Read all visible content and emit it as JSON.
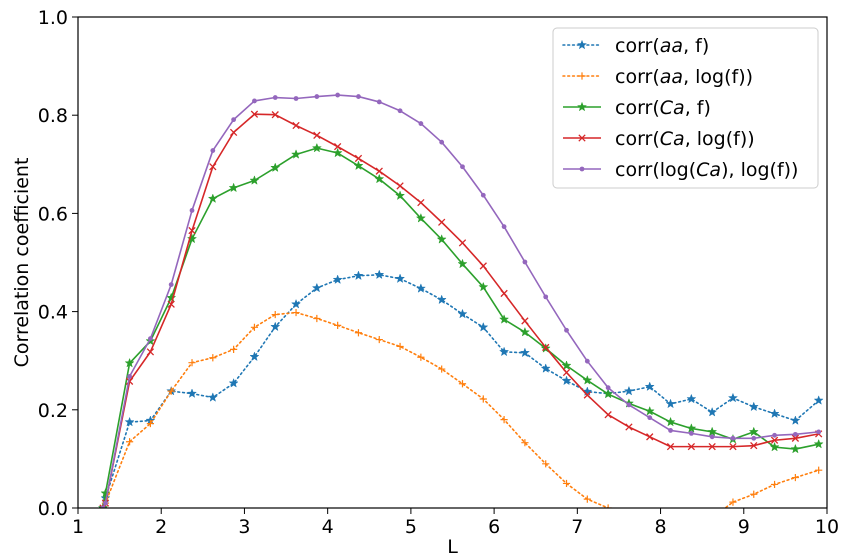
{
  "chart_data": {
    "type": "line",
    "xlabel": "L",
    "ylabel": "Correlation coefficient",
    "xlim": [
      1,
      10
    ],
    "ylim": [
      0,
      1.0
    ],
    "x_ticks": [
      "1",
      "2",
      "3",
      "4",
      "5",
      "6",
      "7",
      "8",
      "9",
      "10"
    ],
    "y_ticks": [
      "0.0",
      "0.2",
      "0.4",
      "0.6",
      "0.8",
      "1.0"
    ],
    "legend_position": "top-right",
    "x": [
      1.3,
      1.33,
      1.62,
      1.87,
      2.12,
      2.37,
      2.62,
      2.87,
      3.12,
      3.37,
      3.62,
      3.87,
      4.12,
      4.37,
      4.62,
      4.87,
      5.12,
      5.37,
      5.62,
      5.87,
      6.12,
      6.37,
      6.62,
      6.87,
      7.12,
      7.37,
      7.62,
      7.87,
      8.12,
      8.37,
      8.62,
      8.87,
      9.12,
      9.37,
      9.62,
      9.9
    ],
    "series": [
      {
        "name": "corr(aa, f)",
        "name_parts": [
          {
            "t": "corr(",
            "i": false
          },
          {
            "t": "aa",
            "i": true
          },
          {
            "t": ", f)",
            "i": false
          }
        ],
        "color": "#1f77b4",
        "linestyle": "dotted",
        "marker": "star",
        "values": [
          0.0,
          0.02,
          0.175,
          0.178,
          0.238,
          0.233,
          0.225,
          0.254,
          0.308,
          0.369,
          0.415,
          0.448,
          0.465,
          0.473,
          0.475,
          0.467,
          0.447,
          0.424,
          0.395,
          0.368,
          0.318,
          0.316,
          0.284,
          0.259,
          0.237,
          0.233,
          0.238,
          0.247,
          0.212,
          0.222,
          0.195,
          0.224,
          0.206,
          0.192,
          0.178,
          0.219
        ]
      },
      {
        "name": "corr(aa, log(f))",
        "name_parts": [
          {
            "t": "corr(",
            "i": false
          },
          {
            "t": "aa",
            "i": true
          },
          {
            "t": ", log(f))",
            "i": false
          }
        ],
        "color": "#ff7f0e",
        "linestyle": "dotted",
        "marker": "plus",
        "values": [
          0.0,
          0.01,
          0.135,
          0.172,
          0.238,
          0.296,
          0.306,
          0.323,
          0.368,
          0.394,
          0.398,
          0.386,
          0.372,
          0.357,
          0.343,
          0.329,
          0.307,
          0.283,
          0.253,
          0.222,
          0.18,
          0.133,
          0.09,
          0.05,
          0.018,
          0.0,
          -0.02,
          -0.04,
          -0.05,
          -0.04,
          -0.02,
          0.012,
          0.028,
          0.048,
          0.062,
          0.077
        ]
      },
      {
        "name": "corr(Ca, f)",
        "name_parts": [
          {
            "t": "corr(",
            "i": false
          },
          {
            "t": "Ca",
            "i": true
          },
          {
            "t": ", f)",
            "i": false
          }
        ],
        "color": "#2ca02c",
        "linestyle": "solid",
        "marker": "star",
        "values": [
          0.0,
          0.03,
          0.295,
          0.34,
          0.428,
          0.548,
          0.63,
          0.652,
          0.667,
          0.693,
          0.72,
          0.733,
          0.723,
          0.697,
          0.67,
          0.636,
          0.59,
          0.547,
          0.497,
          0.45,
          0.384,
          0.358,
          0.325,
          0.29,
          0.26,
          0.232,
          0.213,
          0.197,
          0.175,
          0.162,
          0.155,
          0.14,
          0.155,
          0.124,
          0.12,
          0.13
        ]
      },
      {
        "name": "corr(Ca, log(f))",
        "name_parts": [
          {
            "t": "corr(",
            "i": false
          },
          {
            "t": "Ca",
            "i": true
          },
          {
            "t": ", log(f))",
            "i": false
          }
        ],
        "color": "#d62728",
        "linestyle": "solid",
        "marker": "x",
        "values": [
          0.0,
          0.01,
          0.258,
          0.318,
          0.415,
          0.565,
          0.695,
          0.765,
          0.802,
          0.801,
          0.779,
          0.759,
          0.736,
          0.712,
          0.686,
          0.656,
          0.622,
          0.582,
          0.54,
          0.493,
          0.437,
          0.381,
          0.327,
          0.276,
          0.23,
          0.19,
          0.165,
          0.145,
          0.125,
          0.125,
          0.125,
          0.125,
          0.127,
          0.138,
          0.142,
          0.151
        ]
      },
      {
        "name": "corr(log(Ca), log(f))",
        "name_parts": [
          {
            "t": "corr(log(",
            "i": false
          },
          {
            "t": "Ca",
            "i": true
          },
          {
            "t": "), log(f))",
            "i": false
          }
        ],
        "color": "#9467bd",
        "linestyle": "solid",
        "marker": "dot",
        "values": [
          0.0,
          0.01,
          0.268,
          0.345,
          0.455,
          0.606,
          0.728,
          0.791,
          0.829,
          0.836,
          0.834,
          0.838,
          0.841,
          0.838,
          0.827,
          0.809,
          0.783,
          0.745,
          0.695,
          0.637,
          0.573,
          0.501,
          0.43,
          0.362,
          0.299,
          0.245,
          0.21,
          0.184,
          0.158,
          0.152,
          0.145,
          0.142,
          0.142,
          0.148,
          0.15,
          0.155
        ]
      }
    ]
  }
}
